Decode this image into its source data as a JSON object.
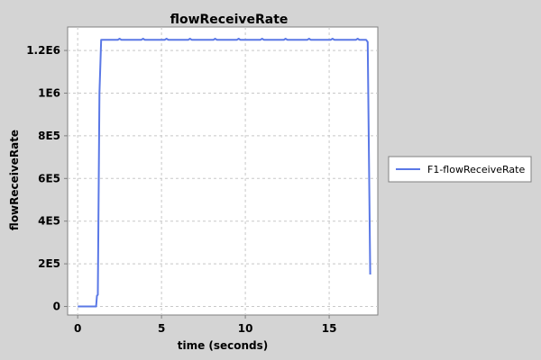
{
  "chart_data": {
    "type": "line",
    "title": "flowReceiveRate",
    "xlabel": "time (seconds)",
    "ylabel": "flowReceiveRate",
    "xlim": [
      -0.6,
      17.9
    ],
    "ylim": [
      -40000,
      1310000
    ],
    "x_ticks": [
      0,
      5,
      10,
      15
    ],
    "x_tick_labels": [
      "0",
      "5",
      "10",
      "15"
    ],
    "y_ticks": [
      0,
      200000,
      400000,
      600000,
      800000,
      1000000,
      1200000
    ],
    "y_tick_labels": [
      "0",
      "2E5",
      "4E5",
      "6E5",
      "8E5",
      "1E6",
      "1.2E6"
    ],
    "grid": true,
    "legend_position": "right",
    "colors": {
      "background": "#d4d4d4",
      "plot_background": "#ffffff",
      "grid": "#c8c8c8",
      "series": "#5a78e6"
    },
    "series": [
      {
        "name": "F1-flowReceiveRate",
        "x": [
          0.0,
          1.0,
          1.1,
          1.15,
          1.2,
          1.3,
          1.4,
          2.4,
          2.5,
          2.6,
          3.8,
          3.9,
          4.0,
          5.2,
          5.3,
          5.4,
          6.6,
          6.7,
          6.8,
          8.1,
          8.2,
          8.3,
          9.5,
          9.6,
          9.7,
          10.9,
          11.0,
          11.1,
          12.3,
          12.4,
          12.5,
          13.7,
          13.8,
          13.9,
          15.1,
          15.2,
          15.3,
          16.6,
          16.7,
          16.8,
          16.95,
          17.2,
          17.3,
          17.45
        ],
        "y": [
          0,
          0,
          0,
          50000,
          55000,
          1000000,
          1250000,
          1250000,
          1255000,
          1250000,
          1250000,
          1255000,
          1250000,
          1250000,
          1255000,
          1250000,
          1250000,
          1255000,
          1250000,
          1250000,
          1255000,
          1250000,
          1250000,
          1255000,
          1250000,
          1250000,
          1255000,
          1250000,
          1250000,
          1255000,
          1250000,
          1250000,
          1255000,
          1250000,
          1250000,
          1255000,
          1250000,
          1250000,
          1255000,
          1250000,
          1250000,
          1250000,
          1240000,
          150000
        ]
      }
    ]
  }
}
